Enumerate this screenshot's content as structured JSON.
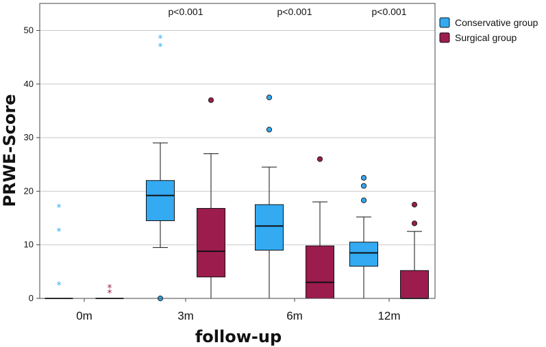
{
  "chart_data": {
    "type": "boxplot",
    "title": "",
    "xlabel": "follow-up",
    "ylabel": "PRWE-Score",
    "ylim": [
      0,
      55
    ],
    "yticks": [
      0,
      10,
      20,
      30,
      40,
      50
    ],
    "grid": "horizontal",
    "legend_position": "top-right",
    "categories": [
      "0m",
      "3m",
      "6m",
      "12m"
    ],
    "annotations": [
      "p<0.001",
      "p<0.001",
      "p<0.001"
    ],
    "annotation_categories": [
      "3m",
      "6m",
      "12m"
    ],
    "series": [
      {
        "name": "Conservative group",
        "color": "#33aaf2",
        "boxes": [
          {
            "min": 0,
            "q1": 0,
            "median": 0,
            "q3": 0,
            "max": 0,
            "outliers": [],
            "extremes": [
              2.5,
              12.5,
              17
            ]
          },
          {
            "min": 9.5,
            "q1": 14.5,
            "median": 19.2,
            "q3": 22,
            "max": 29,
            "outliers": [
              0
            ],
            "extremes": [
              47,
              48.5
            ]
          },
          {
            "min": 0,
            "q1": 9,
            "median": 13.5,
            "q3": 17.5,
            "max": 24.5,
            "outliers": [
              31.5,
              37.5
            ],
            "extremes": []
          },
          {
            "min": 0,
            "q1": 6,
            "median": 8.5,
            "q3": 10.5,
            "max": 15.2,
            "outliers": [
              18.3,
              21,
              22.5
            ],
            "extremes": []
          }
        ]
      },
      {
        "name": "Surgical group",
        "color": "#9c1c4e",
        "boxes": [
          {
            "min": 0,
            "q1": 0,
            "median": 0,
            "q3": 0,
            "max": 0,
            "outliers": [],
            "extremes": [
              1,
              2
            ]
          },
          {
            "min": 0,
            "q1": 4,
            "median": 8.8,
            "q3": 16.8,
            "max": 27,
            "outliers": [
              37
            ],
            "extremes": []
          },
          {
            "min": 0,
            "q1": 0,
            "median": 3,
            "q3": 9.8,
            "max": 18,
            "outliers": [
              26
            ],
            "extremes": []
          },
          {
            "min": 0,
            "q1": 0,
            "median": 0,
            "q3": 5.2,
            "max": 12.5,
            "outliers": [
              14,
              17.5
            ],
            "extremes": []
          }
        ]
      }
    ]
  }
}
